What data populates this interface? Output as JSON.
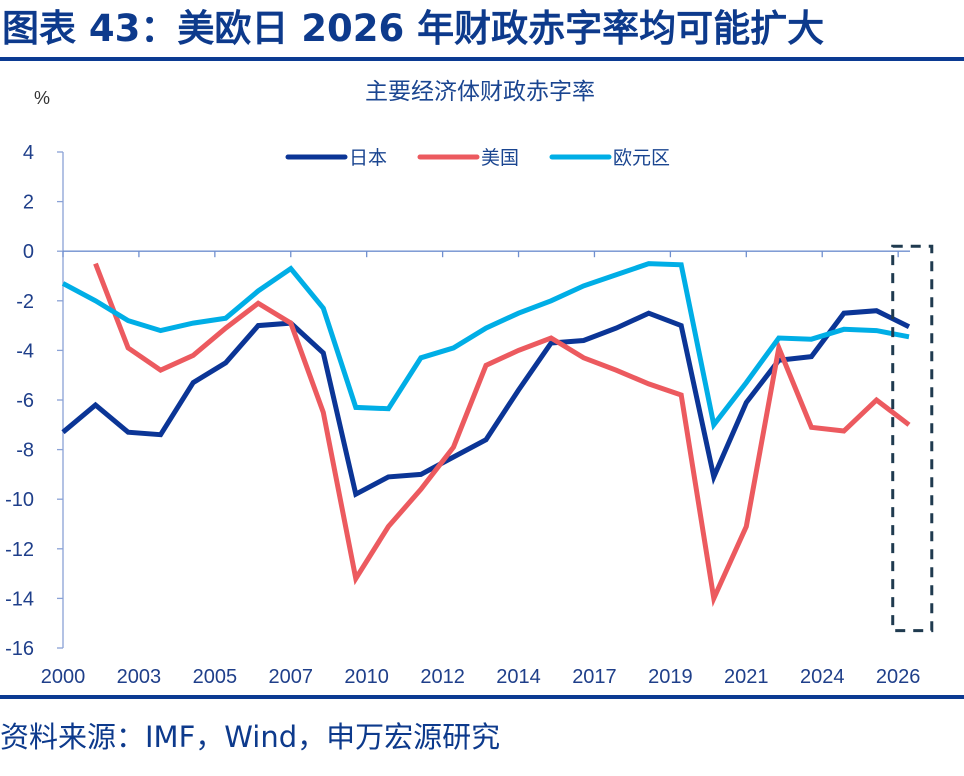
{
  "header": {
    "title": "图表 43：美欧日 2026 年财政赤字率均可能扩大"
  },
  "footer": {
    "source": "资料来源：IMF，Wind，申万宏源研究"
  },
  "chart_data": {
    "type": "line",
    "title": "主要经济体财政赤字率",
    "ylabel": "%",
    "xlabel": "",
    "ylim": [
      -16,
      4
    ],
    "yticks": [
      4,
      2,
      0,
      -2,
      -4,
      -6,
      -8,
      -10,
      -12,
      -14,
      -16
    ],
    "xlim": [
      2000,
      2026
    ],
    "xtick_values": [
      2000,
      2002.333,
      2004.667,
      2007,
      2009.333,
      2011.667,
      2014,
      2016.333,
      2018.667,
      2021,
      2023.333,
      2025.667
    ],
    "xtick_labels": [
      "2000",
      "2003",
      "2005",
      "2007",
      "2010",
      "2012",
      "2014",
      "2017",
      "2019",
      "2021",
      "2024",
      "2026"
    ],
    "grid": false,
    "legend_position": "top-center",
    "highlight_box": {
      "x_range": [
        2025.5,
        2026.7
      ],
      "y_range": [
        -15.3,
        0.2
      ],
      "style": "dashed"
    },
    "x": [
      2000,
      2001,
      2002,
      2003,
      2004,
      2005,
      2006,
      2007,
      2008,
      2009,
      2010,
      2011,
      2012,
      2013,
      2014,
      2015,
      2016,
      2017,
      2018,
      2019,
      2020,
      2021,
      2022,
      2023,
      2024,
      2025,
      2026
    ],
    "series": [
      {
        "name": "日本",
        "color": "#0b3596",
        "values": [
          -7.3,
          -6.2,
          -7.3,
          -7.4,
          -5.3,
          -4.5,
          -3.0,
          -2.9,
          -4.1,
          -9.8,
          -9.1,
          -9.0,
          -8.3,
          -7.6,
          -5.6,
          -3.7,
          -3.6,
          -3.1,
          -2.5,
          -3.0,
          -9.1,
          -6.1,
          -4.4,
          -4.25,
          -2.5,
          -2.4,
          -3.05
        ]
      },
      {
        "name": "美国",
        "color": "#ec5a5f",
        "values": [
          null,
          -0.5,
          -3.9,
          -4.8,
          -4.2,
          -3.1,
          -2.1,
          -2.9,
          -6.5,
          -13.2,
          -11.1,
          -9.6,
          -7.9,
          -4.6,
          -4.0,
          -3.5,
          -4.3,
          -4.8,
          -5.35,
          -5.8,
          -14.0,
          -11.1,
          -3.9,
          -7.1,
          -7.25,
          -6.0,
          -7.0
        ]
      },
      {
        "name": "欧元区",
        "color": "#00aee6",
        "values": [
          -1.3,
          -2.0,
          -2.8,
          -3.2,
          -2.9,
          -2.7,
          -1.6,
          -0.7,
          -2.3,
          -6.3,
          -6.35,
          -4.3,
          -3.9,
          -3.1,
          -2.5,
          -2.0,
          -1.4,
          -0.95,
          -0.5,
          -0.55,
          -7.0,
          -5.3,
          -3.5,
          -3.55,
          -3.15,
          -3.2,
          -3.45
        ]
      }
    ]
  }
}
